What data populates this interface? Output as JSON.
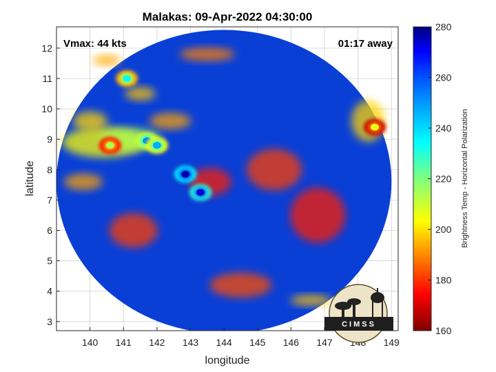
{
  "chart_data": {
    "type": "heatmap",
    "title": "Malakas: 09-Apr-2022 04:30:00",
    "xlabel": "longitude",
    "ylabel": "latitude",
    "xlim": [
      139.0,
      149.2
    ],
    "ylim": [
      2.7,
      12.7
    ],
    "x_ticks": [
      140,
      141,
      142,
      143,
      144,
      145,
      146,
      147,
      148,
      149
    ],
    "y_ticks": [
      3,
      4,
      5,
      6,
      7,
      8,
      9,
      10,
      11,
      12
    ],
    "grid": true,
    "annotations": {
      "vmax": "Vmax: 44 kts",
      "time_offset": "01:17 away"
    },
    "colorbar": {
      "label": "Brightness Temp - Horizontal Polarization",
      "range": [
        160,
        280
      ],
      "ticks": [
        160,
        180,
        200,
        220,
        240,
        260,
        280
      ],
      "colormap": "jet"
    },
    "swath": {
      "center_lon": 144.0,
      "center_lat": 7.6,
      "radius_lon": 5.0,
      "radius_lat": 5.0
    },
    "features": [
      {
        "name": "eyewall-core",
        "lon": 142.85,
        "lat": 7.85,
        "value": 165
      },
      {
        "name": "eyewall-band",
        "lon": 143.3,
        "lat": 7.25,
        "value": 170
      },
      {
        "name": "band-north-1",
        "lon": 141.7,
        "lat": 8.95,
        "value": 190
      },
      {
        "name": "band-north-2",
        "lon": 142.0,
        "lat": 8.8,
        "value": 195
      },
      {
        "name": "band-north-3",
        "lon": 141.1,
        "lat": 11.0,
        "value": 205
      },
      {
        "name": "rainband-west",
        "lon": 140.6,
        "lat": 8.8,
        "value": 225
      },
      {
        "name": "cell-east",
        "lon": 148.5,
        "lat": 9.4,
        "value": 232
      }
    ]
  },
  "logo": {
    "text": "CIMSS"
  },
  "colors": {
    "background": "#0a3fd6",
    "grid": "#d0d0d0"
  }
}
